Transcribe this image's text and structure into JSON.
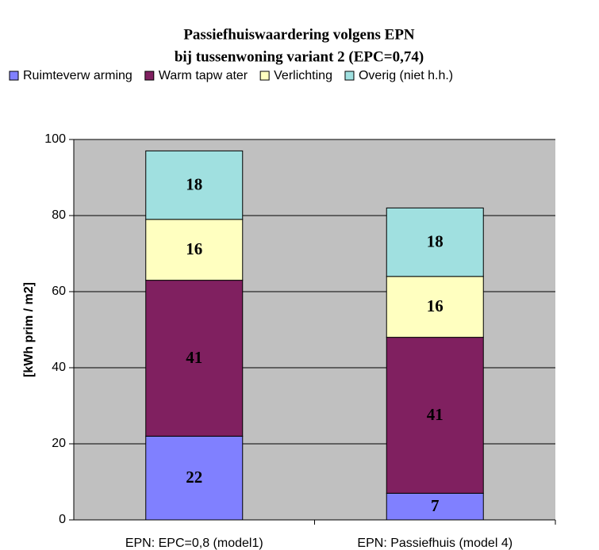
{
  "chart_data": {
    "type": "stacked_bar",
    "title": [
      "Passiefhuiswaardering volgens EPN",
      "bij tussenwoning variant 2 (EPC=0,74)"
    ],
    "y_label": "[kWh prim / m2]",
    "categories": [
      "EPN: EPC=0,8 (model1)",
      "EPN: Passiefhuis (model 4)"
    ],
    "series": [
      {
        "name": "Ruimteverw arming",
        "color": "#8080ff",
        "values": [
          22,
          7
        ]
      },
      {
        "name": "Warm tapw ater",
        "color": "#802060",
        "values": [
          41,
          41
        ]
      },
      {
        "name": "Verlichting",
        "color": "#ffffc0",
        "values": [
          16,
          16
        ]
      },
      {
        "name": "Overig (niet h.h.)",
        "color": "#a0e0e0",
        "values": [
          18,
          18
        ]
      }
    ],
    "ylim": [
      0,
      100
    ],
    "yticks": [
      0,
      20,
      40,
      60,
      80,
      100
    ],
    "grid": true,
    "legend": "top"
  }
}
